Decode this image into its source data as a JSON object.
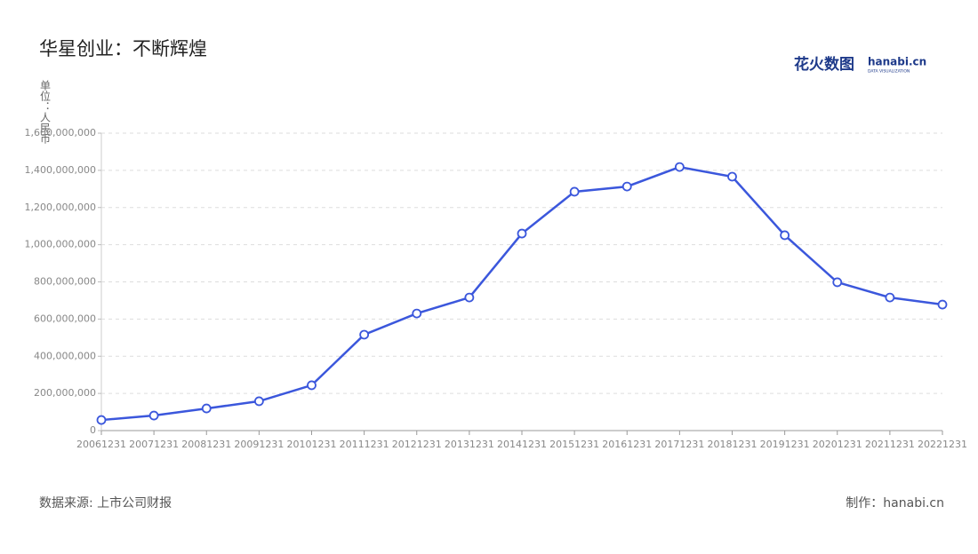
{
  "chart_data": {
    "type": "line",
    "title": "华星创业：不断辉煌",
    "y_label": "单位：人民币",
    "categories": [
      "20061231",
      "20071231",
      "20081231",
      "20091231",
      "20101231",
      "20111231",
      "20121231",
      "20131231",
      "20141231",
      "20151231",
      "20161231",
      "20171231",
      "20181231",
      "20191231",
      "20201231",
      "20211231",
      "20221231"
    ],
    "values": [
      57000000,
      81000000,
      119000000,
      158000000,
      244000000,
      516000000,
      630000000,
      716000000,
      1060000000,
      1285000000,
      1313000000,
      1418000000,
      1366000000,
      1051000000,
      798000000,
      716000000,
      678000000
    ],
    "color": "#3b57dc",
    "ylim": [
      0,
      1600000000
    ],
    "yticks": [
      0,
      {
        "value": 200000000,
        "label": "200,000,000"
      },
      {
        "value": 400000000,
        "label": "400,000,000"
      },
      {
        "value": 600000000,
        "label": "600,000,000"
      },
      {
        "value": 800000000,
        "label": "800,000,000"
      },
      {
        "value": 1000000000,
        "label": "1,000,000,000"
      },
      {
        "value": 1200000000,
        "label": "1,200,000,000"
      },
      {
        "value": 1400000000,
        "label": "1,400,000,000"
      },
      {
        "value": 1600000000,
        "label": "1,600,000,000"
      }
    ],
    "grid": true,
    "source": "数据来源: 上市公司财报",
    "credit": "制作：hanabi.cn",
    "logo": {
      "brand": "花火数图",
      "site": "hanabi.cn",
      "tagline": "DATA VISUALIZATION"
    }
  }
}
